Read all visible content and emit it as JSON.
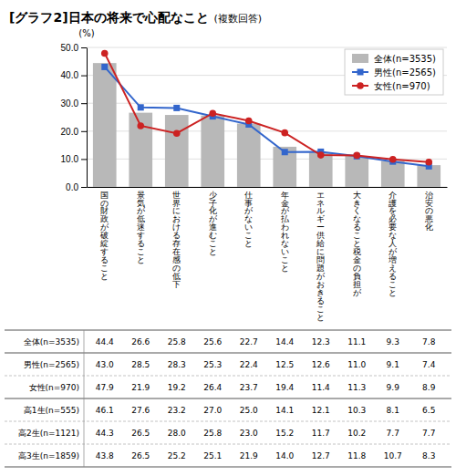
{
  "chart_data": {
    "type": "bar",
    "title": "[グラフ2]日本の将来で心配なこと",
    "subtitle": "(複数回答)",
    "ylabel": "(%)",
    "categories": [
      "国\nの\n財\n政\nが\n破\n綻\nす\nる\nこ\nと",
      "景\n気\nが\n低\n迷\nす\nる\nこ\nと",
      "世\n界\nに\nお\nけ\nる\n存\n在\n感\nの\n低\n下",
      "少\n子\n化\nが\n進\nむ\nこ\nと",
      "仕\n事\nが\nな\nい\nこ\nと",
      "年\n金\nが\n払\nわ\nれ\nな\nい\nこ\nと",
      "エ\nネ\nル\nギ\nー\n供\n給\nに\n問\n題\nが\nお\nき\nる\nこ\nと",
      "大\nき\nく\nな\nる\nこ\nと\n税\n金\nの\n負\n担\nが",
      "介\n護\nを\n必\n要\nな\n人\nが\n増\nえ\nる\nこ\nと",
      "治\n安\nの\n悪\n化"
    ],
    "series": [
      {
        "name": "全体(n=3535)",
        "type": "bar",
        "color": "#b8b8b8",
        "values": [
          44.4,
          26.6,
          25.8,
          25.6,
          22.7,
          14.4,
          12.3,
          11.1,
          9.3,
          7.8
        ]
      },
      {
        "name": "男性(n=2565)",
        "type": "line",
        "marker": "square",
        "color": "#3366cc",
        "values": [
          43.0,
          28.5,
          28.3,
          25.3,
          22.4,
          12.5,
          12.6,
          11.0,
          9.1,
          7.4
        ]
      },
      {
        "name": "女性(n=970)",
        "type": "line",
        "marker": "circle",
        "color": "#cc2222",
        "values": [
          47.9,
          21.9,
          19.2,
          26.4,
          23.7,
          19.4,
          11.4,
          11.3,
          9.9,
          8.9
        ]
      }
    ],
    "ylim": [
      0,
      50
    ],
    "yticks": [
      {
        "value": 0,
        "label": "0.0"
      },
      {
        "value": 10,
        "label": "10.0"
      },
      {
        "value": 20,
        "label": "20.0"
      },
      {
        "value": 30,
        "label": "30.0"
      },
      {
        "value": 40,
        "label": "40.0"
      },
      {
        "value": 50,
        "label": "50.0"
      }
    ],
    "grid": true,
    "legend": "upper right",
    "table": {
      "rows": [
        {
          "label": "全体(n=3535)",
          "values": [
            44.4,
            26.6,
            25.8,
            25.6,
            22.7,
            14.4,
            12.3,
            11.1,
            9.3,
            7.8
          ],
          "value_labels": [
            "44.4",
            "26.6",
            "25.8",
            "25.6",
            "22.7",
            "14.4",
            "12.3",
            "11.1",
            "9.3",
            "7.8"
          ]
        },
        {
          "label": "男性(n=2565)",
          "values": [
            43.0,
            28.5,
            28.3,
            25.3,
            22.4,
            12.5,
            12.6,
            11.0,
            9.1,
            7.4
          ],
          "value_labels": [
            "43.0",
            "28.5",
            "28.3",
            "25.3",
            "22.4",
            "12.5",
            "12.6",
            "11.0",
            "9.1",
            "7.4"
          ]
        },
        {
          "label": "女性(n=970)",
          "values": [
            47.9,
            21.9,
            19.2,
            26.4,
            23.7,
            19.4,
            11.4,
            11.3,
            9.9,
            8.9
          ],
          "value_labels": [
            "47.9",
            "21.9",
            "19.2",
            "26.4",
            "23.7",
            "19.4",
            "11.4",
            "11.3",
            "9.9",
            "8.9"
          ]
        },
        {
          "label": "高1生(n=555)",
          "values": [
            46.1,
            27.6,
            23.2,
            27.0,
            25.0,
            14.1,
            12.1,
            10.3,
            8.1,
            6.5
          ],
          "value_labels": [
            "46.1",
            "27.6",
            "23.2",
            "27.0",
            "25.0",
            "14.1",
            "12.1",
            "10.3",
            "8.1",
            "6.5"
          ]
        },
        {
          "label": "高2生(n=1121)",
          "values": [
            44.3,
            26.5,
            28.0,
            25.8,
            23.0,
            15.2,
            11.7,
            10.2,
            7.7,
            7.7
          ],
          "value_labels": [
            "44.3",
            "26.5",
            "28.0",
            "25.8",
            "23.0",
            "15.2",
            "11.7",
            "10.2",
            "7.7",
            "7.7"
          ]
        },
        {
          "label": "高3生(n=1859)",
          "values": [
            43.8,
            26.5,
            25.2,
            25.1,
            21.9,
            14.0,
            12.7,
            11.8,
            10.7,
            8.3
          ],
          "value_labels": [
            "43.8",
            "26.5",
            "25.2",
            "25.1",
            "21.9",
            "14.0",
            "12.7",
            "11.8",
            "10.7",
            "8.3"
          ]
        }
      ]
    }
  }
}
